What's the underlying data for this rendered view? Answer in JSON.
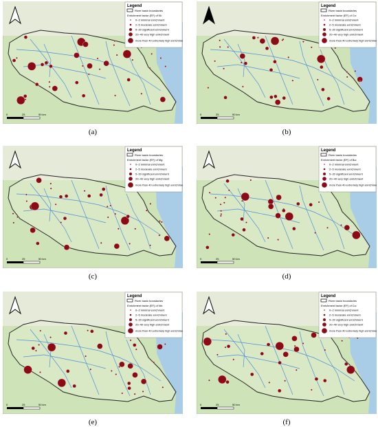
{
  "panels": [
    {
      "caption": "(a)",
      "legend": {
        "title": "Legend",
        "boundary": "River basin boundaries",
        "factor": "Enrichment factor (EF) of Ni:",
        "items": [
          "0–2 minimal enrichment",
          "2–5 moderate enrichment",
          "5–20 significant enrichment",
          "20–40 very high enrichment",
          "more than 40 extremely high enrichment"
        ]
      },
      "scale": [
        "0",
        "25",
        "50 km"
      ]
    },
    {
      "caption": "(b)",
      "legend": {
        "title": "Legend",
        "boundary": "River basin boundaries",
        "factor": "Enrichment factor (EF) of Co:",
        "items": [
          "0–2 minimal enrichment",
          "2–5 moderate enrichment",
          "5–20 significant enrichment",
          "20–40 very high enrichment",
          "more than 40 extremely high enrichment"
        ]
      },
      "scale": [
        "0",
        "25",
        "50 km"
      ]
    },
    {
      "caption": "(c)",
      "legend": {
        "title": "Legend",
        "boundary": "River basin boundaries",
        "factor": "Enrichment factor (EF) of Mg:",
        "items": [
          "0–2 minimal enrichment",
          "2–5 moderate enrichment",
          "5–20 significant enrichment",
          "20–40 very high enrichment",
          "more than 40 extremely high enrichment"
        ]
      },
      "scale": [
        "0",
        "25",
        "50 km"
      ]
    },
    {
      "caption": "(d)",
      "legend": {
        "title": "Legend",
        "boundary": "River basin boundaries",
        "factor": "Enrichment factor (EF) of Ba:",
        "items": [
          "0–2 minimal enrichment",
          "2–5 moderate enrichment",
          "5–20 significant enrichment",
          "20–40 very high enrichment",
          "more than 40 extremely high enrichment"
        ]
      },
      "scale": [
        "0",
        "25",
        "50 km"
      ]
    },
    {
      "caption": "(e)",
      "legend": {
        "title": "Legend",
        "boundary": "River basin boundaries",
        "factor": "Enrichment factor (EF) of Nb:",
        "items": [
          "0–2 minimal enrichment",
          "2–5 moderate enrichment",
          "5–20 significant enrichment",
          "20–40 very high enrichment",
          "more than 40 extremely high enrichment"
        ]
      },
      "scale": [
        "0",
        "25",
        "50 km"
      ]
    },
    {
      "caption": "(f)",
      "legend": {
        "title": "Legend",
        "boundary": "River basin boundaries",
        "factor": "Enrichment factor (EF) of Cu:",
        "items": [
          "0–2 minimal enrichment",
          "2–5 moderate enrichment",
          "5–20 significant enrichment",
          "20–40 very high enrichment",
          "more than 40 extremely high enrichment"
        ]
      },
      "scale": [
        "0",
        "25",
        "50 km"
      ]
    }
  ]
}
